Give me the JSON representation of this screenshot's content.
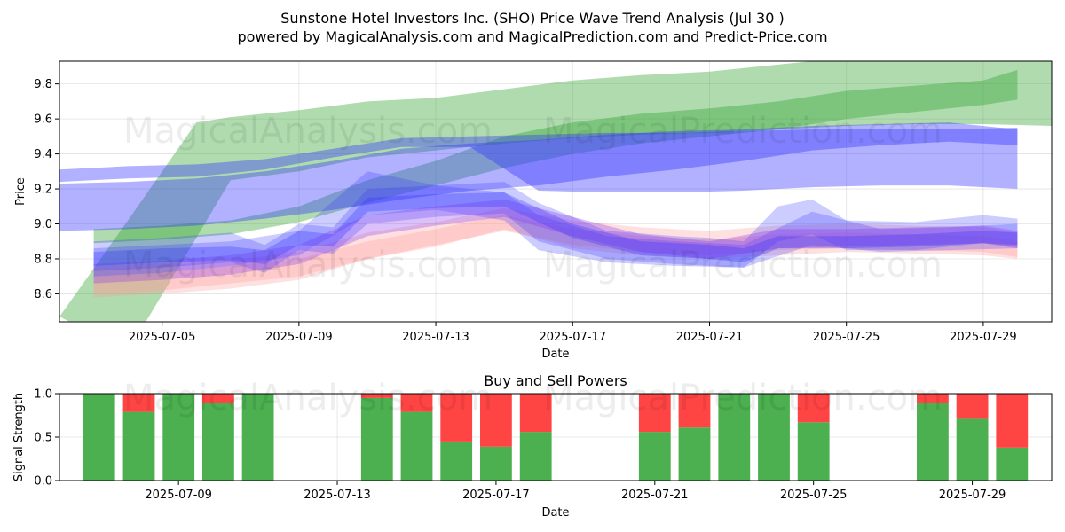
{
  "header": {
    "title_line1": "Sunstone Hotel Investors Inc. (SHO) Price Wave Trend Analysis (Jul 30 )",
    "title_line2": "powered by MagicalAnalysis.com and MagicalPrediction.com and Predict-Price.com"
  },
  "watermarks": [
    "MagicalAnalysis.com",
    "MagicalPrediction.com"
  ],
  "colors": {
    "green": "#2ca02c",
    "blue": "#3333ff",
    "pink": "#ff9999",
    "purple": "#8833ee",
    "buy": "#4caf50",
    "sell": "#ff4444"
  },
  "chart_data": [
    {
      "type": "area",
      "title": "",
      "xlabel": "Date",
      "ylabel": "Price",
      "xlim": [
        "2025-07-02",
        "2025-07-31"
      ],
      "ylim": [
        8.44,
        9.93
      ],
      "xticks": [
        "2025-07-05",
        "2025-07-09",
        "2025-07-13",
        "2025-07-17",
        "2025-07-21",
        "2025-07-25",
        "2025-07-29"
      ],
      "yticks": [
        8.6,
        8.8,
        9.0,
        9.2,
        9.4,
        9.6,
        9.8
      ],
      "grid": true,
      "bands": [
        {
          "color": "green",
          "opacity": 0.38,
          "x": [
            "2025-07-02",
            "2025-07-04",
            "2025-07-06",
            "2025-07-07",
            "2025-07-09",
            "2025-07-11",
            "2025-07-13",
            "2025-07-15",
            "2025-07-17",
            "2025-07-19",
            "2025-07-21",
            "2025-07-23",
            "2025-07-25",
            "2025-07-27",
            "2025-07-29",
            "2025-07-31"
          ],
          "upper": [
            8.47,
            9.02,
            9.58,
            9.61,
            9.65,
            9.7,
            9.72,
            9.77,
            9.82,
            9.85,
            9.87,
            9.91,
            9.95,
            9.97,
            9.99,
            10.0
          ],
          "lower": [
            8.47,
            8.27,
            8.92,
            9.25,
            9.3,
            9.38,
            9.42,
            9.46,
            9.49,
            9.51,
            9.52,
            9.54,
            9.56,
            9.57,
            9.57,
            9.56
          ]
        },
        {
          "color": "green",
          "opacity": 0.38,
          "x": [
            "2025-07-03",
            "2025-07-05",
            "2025-07-07",
            "2025-07-09",
            "2025-07-11",
            "2025-07-13",
            "2025-07-15",
            "2025-07-17",
            "2025-07-19",
            "2025-07-21",
            "2025-07-23",
            "2025-07-25",
            "2025-07-27",
            "2025-07-29",
            "2025-07-30"
          ],
          "upper": [
            8.97,
            8.99,
            9.02,
            9.1,
            9.25,
            9.36,
            9.5,
            9.58,
            9.63,
            9.66,
            9.7,
            9.76,
            9.79,
            9.82,
            9.88
          ],
          "lower": [
            8.89,
            8.91,
            8.94,
            9.01,
            9.12,
            9.22,
            9.32,
            9.4,
            9.46,
            9.5,
            9.54,
            9.6,
            9.64,
            9.68,
            9.71
          ]
        },
        {
          "color": "blue",
          "opacity": 0.38,
          "x": [
            "2025-07-02",
            "2025-07-04",
            "2025-07-06",
            "2025-07-08",
            "2025-07-10",
            "2025-07-12",
            "2025-07-14",
            "2025-07-16",
            "2025-07-18",
            "2025-07-20",
            "2025-07-22",
            "2025-07-24",
            "2025-07-26",
            "2025-07-28",
            "2025-07-30"
          ],
          "upper": [
            9.31,
            9.33,
            9.34,
            9.37,
            9.43,
            9.49,
            9.5,
            9.51,
            9.52,
            9.52,
            9.53,
            9.54,
            9.54,
            9.54,
            9.55
          ],
          "lower": [
            9.24,
            9.26,
            9.27,
            9.31,
            9.38,
            9.44,
            9.44,
            9.19,
            9.18,
            9.18,
            9.19,
            9.21,
            9.22,
            9.22,
            9.2
          ]
        },
        {
          "color": "blue",
          "opacity": 0.38,
          "x": [
            "2025-07-02",
            "2025-07-04",
            "2025-07-06",
            "2025-07-08",
            "2025-07-10",
            "2025-07-12",
            "2025-07-14",
            "2025-07-16",
            "2025-07-18",
            "2025-07-20",
            "2025-07-22",
            "2025-07-24",
            "2025-07-26",
            "2025-07-28",
            "2025-07-30"
          ],
          "upper": [
            9.23,
            9.24,
            9.26,
            9.3,
            9.36,
            9.43,
            9.46,
            9.48,
            9.51,
            9.53,
            9.54,
            9.56,
            9.57,
            9.58,
            9.54
          ],
          "lower": [
            8.96,
            8.97,
            8.99,
            9.03,
            9.08,
            9.14,
            9.19,
            9.22,
            9.27,
            9.31,
            9.36,
            9.42,
            9.45,
            9.47,
            9.45
          ]
        },
        {
          "color": "pink",
          "opacity": 0.3,
          "x": [
            "2025-07-03",
            "2025-07-05",
            "2025-07-07",
            "2025-07-09",
            "2025-07-11",
            "2025-07-13",
            "2025-07-15",
            "2025-07-17",
            "2025-07-19",
            "2025-07-21",
            "2025-07-23",
            "2025-07-25",
            "2025-07-27",
            "2025-07-29",
            "2025-07-30"
          ],
          "upper": [
            8.74,
            8.76,
            8.79,
            8.84,
            8.95,
            9.01,
            9.09,
            9.02,
            8.98,
            8.96,
            8.99,
            9.0,
            8.99,
            8.98,
            8.95
          ],
          "lower": [
            8.58,
            8.6,
            8.63,
            8.68,
            8.8,
            8.87,
            8.97,
            8.86,
            8.82,
            8.8,
            8.82,
            8.84,
            8.83,
            8.82,
            8.8
          ]
        },
        {
          "color": "pink",
          "opacity": 0.3,
          "x": [
            "2025-07-03",
            "2025-07-05",
            "2025-07-07",
            "2025-07-09",
            "2025-07-11",
            "2025-07-13",
            "2025-07-15",
            "2025-07-17",
            "2025-07-19",
            "2025-07-21",
            "2025-07-23",
            "2025-07-25",
            "2025-07-27",
            "2025-07-29",
            "2025-07-30"
          ],
          "upper": [
            8.7,
            8.72,
            8.76,
            8.8,
            8.9,
            8.97,
            9.05,
            8.97,
            8.93,
            8.91,
            8.94,
            8.95,
            8.94,
            8.93,
            8.9
          ],
          "lower": [
            8.6,
            8.62,
            8.66,
            8.7,
            8.8,
            8.88,
            8.96,
            8.88,
            8.84,
            8.82,
            8.85,
            8.86,
            8.85,
            8.84,
            8.81
          ]
        },
        {
          "color": "blue",
          "opacity": 0.25,
          "x": [
            "2025-07-03",
            "2025-07-05",
            "2025-07-07",
            "2025-07-08",
            "2025-07-09",
            "2025-07-10",
            "2025-07-11",
            "2025-07-13",
            "2025-07-15",
            "2025-07-16",
            "2025-07-18",
            "2025-07-20",
            "2025-07-21",
            "2025-07-22",
            "2025-07-23",
            "2025-07-24",
            "2025-07-25",
            "2025-07-27",
            "2025-07-29",
            "2025-07-30"
          ],
          "upper": [
            8.9,
            8.92,
            8.95,
            8.88,
            9.0,
            8.98,
            9.2,
            9.22,
            9.24,
            9.12,
            8.96,
            8.93,
            8.92,
            8.9,
            9.1,
            9.14,
            9.02,
            9.01,
            9.05,
            9.03
          ],
          "lower": [
            8.73,
            8.75,
            8.78,
            8.72,
            8.85,
            8.83,
            9.0,
            9.04,
            9.06,
            8.9,
            8.8,
            8.77,
            8.76,
            8.75,
            8.9,
            8.94,
            8.85,
            8.85,
            8.89,
            8.87
          ]
        },
        {
          "color": "blue",
          "opacity": 0.25,
          "x": [
            "2025-07-03",
            "2025-07-05",
            "2025-07-07",
            "2025-07-09",
            "2025-07-11",
            "2025-07-13",
            "2025-07-15",
            "2025-07-16",
            "2025-07-18",
            "2025-07-20",
            "2025-07-22",
            "2025-07-24",
            "2025-07-26",
            "2025-07-28",
            "2025-07-30"
          ],
          "upper": [
            8.86,
            8.88,
            8.9,
            8.96,
            9.3,
            9.22,
            9.18,
            9.05,
            8.93,
            8.9,
            8.88,
            9.07,
            8.97,
            8.98,
            9.0
          ],
          "lower": [
            8.7,
            8.72,
            8.76,
            8.82,
            9.05,
            9.08,
            9.02,
            8.85,
            8.78,
            8.76,
            8.75,
            8.88,
            8.84,
            8.85,
            8.86
          ]
        },
        {
          "color": "purple",
          "opacity": 0.3,
          "x": [
            "2025-07-03",
            "2025-07-05",
            "2025-07-07",
            "2025-07-09",
            "2025-07-11",
            "2025-07-13",
            "2025-07-15",
            "2025-07-17",
            "2025-07-19",
            "2025-07-21",
            "2025-07-23",
            "2025-07-25",
            "2025-07-27",
            "2025-07-29",
            "2025-07-30"
          ],
          "upper": [
            8.77,
            8.79,
            8.82,
            8.88,
            9.05,
            9.1,
            9.14,
            9.04,
            8.94,
            8.9,
            8.97,
            8.97,
            8.98,
            8.99,
            8.96
          ],
          "lower": [
            8.66,
            8.68,
            8.71,
            8.77,
            8.93,
            8.99,
            9.04,
            8.93,
            8.84,
            8.8,
            8.86,
            8.87,
            8.88,
            8.89,
            8.86
          ]
        },
        {
          "color": "blue",
          "opacity": 0.3,
          "x": [
            "2025-07-03",
            "2025-07-05",
            "2025-07-07",
            "2025-07-08",
            "2025-07-09",
            "2025-07-10",
            "2025-07-11",
            "2025-07-13",
            "2025-07-15",
            "2025-07-17",
            "2025-07-19",
            "2025-07-21",
            "2025-07-22",
            "2025-07-23",
            "2025-07-25",
            "2025-07-27",
            "2025-07-29",
            "2025-07-30"
          ],
          "upper": [
            8.84,
            8.86,
            8.87,
            8.85,
            8.96,
            8.94,
            9.15,
            9.17,
            9.18,
            9.0,
            8.9,
            8.88,
            8.86,
            8.93,
            8.93,
            8.94,
            8.96,
            8.95
          ],
          "lower": [
            8.76,
            8.78,
            8.79,
            8.77,
            8.88,
            8.87,
            9.07,
            9.09,
            9.1,
            8.92,
            8.82,
            8.8,
            8.78,
            8.86,
            8.86,
            8.87,
            8.89,
            8.88
          ]
        }
      ]
    },
    {
      "type": "bar",
      "title": "Buy and Sell Powers",
      "xlabel": "Date",
      "ylabel": "Signal Strength",
      "xlim": [
        "2025-07-06",
        "2025-07-31"
      ],
      "ylim": [
        0,
        1
      ],
      "xticks": [
        "2025-07-09",
        "2025-07-13",
        "2025-07-17",
        "2025-07-21",
        "2025-07-25",
        "2025-07-29"
      ],
      "yticks": [
        0.0,
        0.5,
        1.0
      ],
      "grid": true,
      "categories": [
        "2025-07-07",
        "2025-07-08",
        "2025-07-09",
        "2025-07-10",
        "2025-07-11",
        "2025-07-14",
        "2025-07-15",
        "2025-07-16",
        "2025-07-17",
        "2025-07-18",
        "2025-07-21",
        "2025-07-22",
        "2025-07-23",
        "2025-07-24",
        "2025-07-25",
        "2025-07-28",
        "2025-07-29",
        "2025-07-30"
      ],
      "series": [
        {
          "values": [
            1.0,
            0.79,
            1.0,
            0.89,
            1.0,
            0.95,
            0.79,
            0.45,
            0.39,
            0.56,
            0.56,
            0.61,
            1.0,
            1.0,
            0.67,
            0.89,
            0.72,
            0.38
          ]
        },
        {
          "values": [
            0.0,
            0.21,
            0.0,
            0.11,
            0.0,
            0.05,
            0.21,
            0.55,
            0.61,
            0.44,
            0.44,
            0.39,
            0.0,
            0.0,
            0.33,
            0.11,
            0.28,
            0.62
          ]
        }
      ]
    }
  ]
}
